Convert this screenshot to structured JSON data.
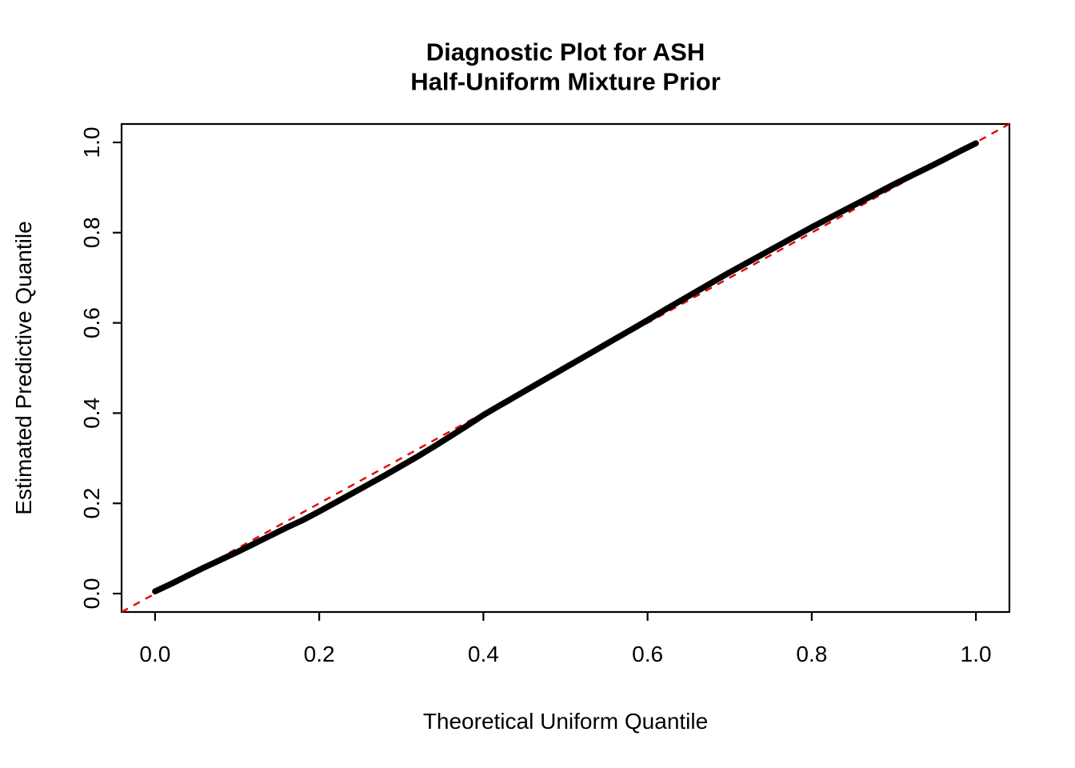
{
  "chart_data": {
    "type": "scatter",
    "title_lines": [
      "Diagnostic Plot for ASH",
      "Half-Uniform Mixture Prior"
    ],
    "xlabel": "Theoretical Uniform Quantile",
    "ylabel": "Estimated Predictive Quantile",
    "xlim": [
      -0.0408,
      1.0408
    ],
    "ylim": [
      -0.0408,
      1.0408
    ],
    "xticks": [
      0.0,
      0.2,
      0.4,
      0.6,
      0.8,
      1.0
    ],
    "xtick_labels": [
      "0.0",
      "0.2",
      "0.4",
      "0.6",
      "0.8",
      "1.0"
    ],
    "yticks": [
      0.0,
      0.2,
      0.4,
      0.6,
      0.8,
      1.0
    ],
    "ytick_labels": [
      "0.0",
      "0.2",
      "0.4",
      "0.6",
      "0.8",
      "1.0"
    ],
    "grid": false,
    "legend": "none",
    "point_color": "#000000",
    "series": [
      {
        "name": "predictive-quantiles",
        "x": [
          0.0,
          0.02,
          0.04,
          0.06,
          0.08,
          0.1,
          0.12,
          0.14,
          0.16,
          0.18,
          0.2,
          0.22,
          0.24,
          0.26,
          0.28,
          0.3,
          0.32,
          0.34,
          0.36,
          0.38,
          0.4,
          0.42,
          0.44,
          0.46,
          0.48,
          0.5,
          0.52,
          0.54,
          0.56,
          0.58,
          0.6,
          0.62,
          0.64,
          0.66,
          0.68,
          0.7,
          0.72,
          0.74,
          0.76,
          0.78,
          0.8,
          0.82,
          0.84,
          0.86,
          0.88,
          0.9,
          0.92,
          0.94,
          0.96,
          0.98,
          1.0
        ],
        "y": [
          0.005,
          0.022,
          0.04,
          0.058,
          0.075,
          0.092,
          0.11,
          0.128,
          0.146,
          0.163,
          0.182,
          0.202,
          0.222,
          0.242,
          0.262,
          0.283,
          0.304,
          0.326,
          0.349,
          0.372,
          0.396,
          0.417,
          0.438,
          0.459,
          0.48,
          0.501,
          0.522,
          0.543,
          0.564,
          0.585,
          0.606,
          0.628,
          0.649,
          0.67,
          0.691,
          0.712,
          0.732,
          0.752,
          0.772,
          0.792,
          0.812,
          0.831,
          0.85,
          0.869,
          0.888,
          0.907,
          0.925,
          0.943,
          0.961,
          0.98,
          0.998
        ]
      }
    ],
    "reference_line": {
      "intercept": 0,
      "slope": 1,
      "color": "#e60000",
      "style": "dashed"
    }
  }
}
